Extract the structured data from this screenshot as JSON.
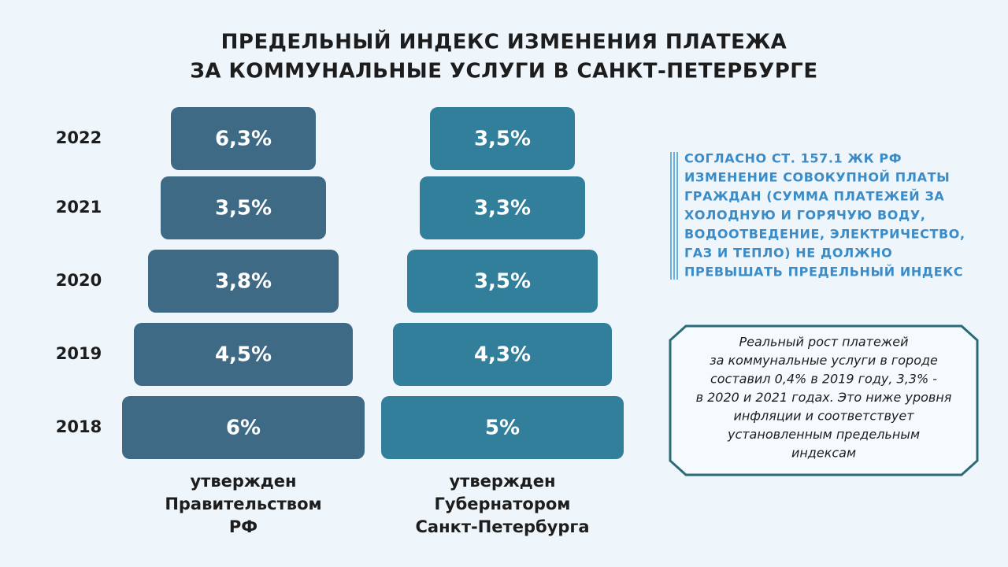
{
  "header": {
    "title": [
      "ПРЕДЕЛЬНЫЙ ИНДЕКС ИЗМЕНЕНИЯ ПЛАТЕЖА",
      "ЗА КОММУНАЛЬНЫЕ УСЛУГИ В САНКТ-ПЕТЕРБУРГЕ"
    ]
  },
  "years": [
    "2022",
    "2021",
    "2020",
    "2019",
    "2018"
  ],
  "columns": [
    {
      "values": [
        "6,3%",
        "3,5%",
        "3,8%",
        "4,5%",
        "6%"
      ],
      "caption": [
        "утвержден",
        "Правительством",
        "РФ"
      ]
    },
    {
      "values": [
        "3,5%",
        "3,3%",
        "3,5%",
        "4,3%",
        "5%"
      ],
      "caption": [
        "утвержден",
        "Губернатором",
        "Санкт-Петербурга"
      ]
    }
  ],
  "note": [
    "СОГЛАСНО СТ. 157.1 ЖК РФ",
    "ИЗМЕНЕНИЕ СОВОКУПНОЙ ПЛАТЫ",
    "ГРАЖДАН (СУММА ПЛАТЕЖЕЙ ЗА",
    "ХОЛОДНУЮ И ГОРЯЧУЮ ВОДУ,",
    "ВОДООТВЕДЕНИЕ, ЭЛЕКТРИЧЕСТВО,",
    "ГАЗ И ТЕПЛО) НЕ ДОЛЖНО",
    "ПРЕВЫШАТЬ ПРЕДЕЛЬНЫЙ ИНДЕКС"
  ],
  "box": [
    "Реальный рост платежей",
    "за коммунальные услуги в городе",
    "составил 0,4% в 2019 году, 3,3% -",
    "в 2020 и 2021 годах. Это ниже уровня",
    "инфляции и соответствует",
    "установленным предельным",
    "индексам"
  ]
}
